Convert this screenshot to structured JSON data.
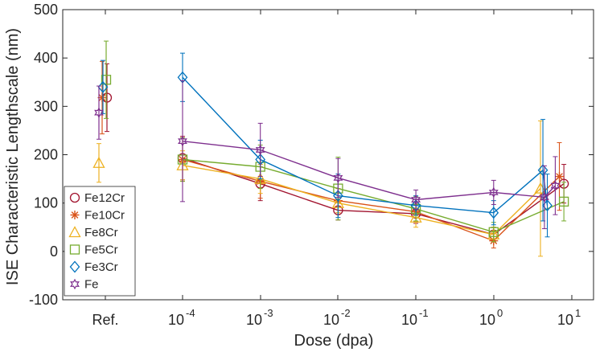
{
  "chart_data": {
    "type": "line",
    "xlabel": "Dose (dpa)",
    "ylabel": "ISE Characteristic Lengthscale (nm)",
    "ylim": [
      -100,
      500
    ],
    "x_axis_scale": "log",
    "grid": false,
    "legend_placement": "bottom-left",
    "y_ticks": [
      "-100",
      "0",
      "100",
      "200",
      "300",
      "400",
      "500"
    ],
    "x_ticks": [
      {
        "label": "Ref.",
        "exp": null
      },
      {
        "label": "10",
        "exp": "-4"
      },
      {
        "label": "10",
        "exp": "-3"
      },
      {
        "label": "10",
        "exp": "-2"
      },
      {
        "label": "10",
        "exp": "-1"
      },
      {
        "label": "10",
        "exp": "0"
      },
      {
        "label": "10",
        "exp": "1"
      }
    ],
    "ref_values": [
      {
        "name": "Fe12Cr",
        "y": 318,
        "err_low": 70,
        "err_high": 70
      },
      {
        "name": "Fe10Cr",
        "y": 318,
        "err_low": 75,
        "err_high": 75
      },
      {
        "name": "Fe8Cr",
        "y": 183,
        "err_low": 40,
        "err_high": 40
      },
      {
        "name": "Fe5Cr",
        "y": 355,
        "err_low": 80,
        "err_high": 80
      },
      {
        "name": "Fe3Cr",
        "y": 340,
        "err_low": 55,
        "err_high": 55
      },
      {
        "name": "Fe",
        "y": 287,
        "err_low": 55,
        "err_high": 55
      }
    ],
    "series": [
      {
        "name": "Fe12Cr",
        "color": "#a2142f",
        "marker": "circle",
        "x": [
          0.0001,
          0.001,
          0.01,
          0.1,
          1,
          8
        ],
        "y": [
          193,
          140,
          85,
          78,
          35,
          140
        ],
        "err": [
          45,
          35,
          20,
          20,
          15,
          40
        ]
      },
      {
        "name": "Fe10Cr",
        "color": "#d95319",
        "marker": "asterisk",
        "x": [
          0.0001,
          0.001,
          0.01,
          0.1,
          1,
          7
        ],
        "y": [
          190,
          145,
          105,
          82,
          22,
          155
        ],
        "err": [
          45,
          35,
          25,
          20,
          15,
          70
        ]
      },
      {
        "name": "Fe8Cr",
        "color": "#edb120",
        "marker": "triangle",
        "x": [
          0.0001,
          0.001,
          0.01,
          0.1,
          1,
          4
        ],
        "y": [
          178,
          150,
          100,
          70,
          35,
          130
        ],
        "err": [
          30,
          30,
          20,
          20,
          15,
          140
        ]
      },
      {
        "name": "Fe5Cr",
        "color": "#77ac30",
        "marker": "square",
        "x": [
          0.0001,
          0.001,
          0.01,
          0.1,
          1,
          8
        ],
        "y": [
          190,
          175,
          130,
          88,
          40,
          103
        ],
        "err": [
          45,
          45,
          65,
          25,
          20,
          40
        ]
      },
      {
        "name": "Fe3Cr",
        "color": "#0072bd",
        "marker": "diamond",
        "x": [
          0.0001,
          0.001,
          0.01,
          0.1,
          1,
          4.3,
          4.9
        ],
        "y": [
          360,
          190,
          115,
          95,
          80,
          168,
          95
        ],
        "err": [
          50,
          40,
          45,
          20,
          25,
          105,
          65
        ]
      },
      {
        "name": "Fe",
        "color": "#7e2f8e",
        "marker": "hexagram",
        "x": [
          0.0001,
          0.001,
          0.01,
          0.1,
          1,
          4.5,
          6.2
        ],
        "y": [
          228,
          210,
          152,
          107,
          122,
          112,
          136
        ],
        "err": [
          125,
          55,
          40,
          20,
          25,
          65,
          60
        ]
      }
    ]
  }
}
